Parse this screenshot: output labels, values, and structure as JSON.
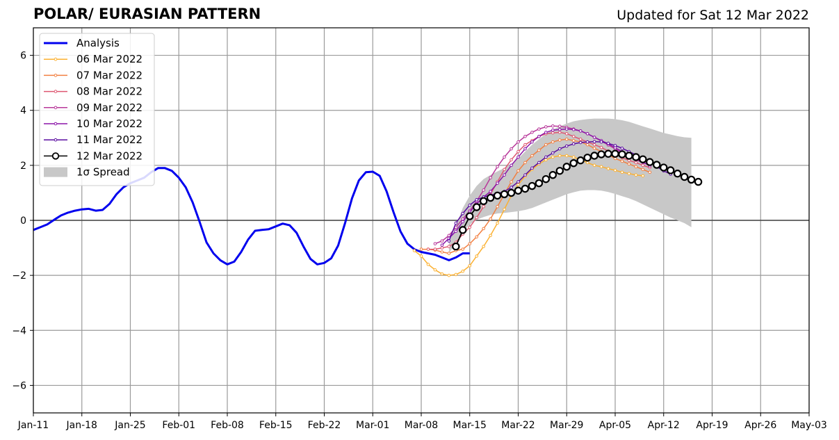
{
  "header": {
    "title": "POLAR/ EURASIAN  PATTERN",
    "updated": "Updated for Sat 12 Mar 2022"
  },
  "chart_data": {
    "type": "line",
    "title": "POLAR/ EURASIAN  PATTERN",
    "subtitle": "Updated for Sat 12 Mar 2022",
    "xlabel": "",
    "ylabel": "",
    "xlim": [
      "2022-01-11",
      "2022-05-03"
    ],
    "ylim": [
      -7,
      7
    ],
    "grid": true,
    "legend_position": "top-left",
    "x_tick_labels": [
      "Jan-11",
      "Jan-18",
      "Jan-25",
      "Feb-01",
      "Feb-08",
      "Feb-15",
      "Feb-22",
      "Mar-01",
      "Mar-08",
      "Mar-15",
      "Mar-22",
      "Mar-29",
      "Apr-05",
      "Apr-12",
      "Apr-19",
      "Apr-26",
      "May-03"
    ],
    "y_tick_labels": [
      "−6",
      "−4",
      "−2",
      "0",
      "2",
      "4",
      "6"
    ],
    "y_ticks": [
      -6,
      -4,
      -2,
      0,
      2,
      4,
      6
    ],
    "legend": [
      "Analysis",
      "06 Mar 2022",
      "07 Mar 2022",
      "08 Mar 2022",
      "09 Mar 2022",
      "10 Mar 2022",
      "11 Mar 2022",
      "12 Mar 2022",
      "1σ Spread"
    ],
    "analysis": {
      "name": "Analysis",
      "color": "#0000ee",
      "start": "2022-01-11",
      "values": [
        -0.35,
        -0.25,
        -0.15,
        0.02,
        0.18,
        0.28,
        0.35,
        0.4,
        0.42,
        0.35,
        0.38,
        0.6,
        0.95,
        1.2,
        1.35,
        1.45,
        1.55,
        1.75,
        1.9,
        1.9,
        1.8,
        1.55,
        1.2,
        0.65,
        -0.05,
        -0.8,
        -1.2,
        -1.45,
        -1.6,
        -1.5,
        -1.15,
        -0.7,
        -0.38,
        -0.35,
        -0.32,
        -0.22,
        -0.12,
        -0.18,
        -0.45,
        -0.95,
        -1.4,
        -1.6,
        -1.55,
        -1.38,
        -0.92,
        -0.1,
        0.8,
        1.45,
        1.75,
        1.77,
        1.62,
        1.05,
        0.3,
        -0.4,
        -0.85,
        -1.05,
        -1.15,
        -1.2,
        -1.25,
        -1.35,
        -1.45,
        -1.35,
        -1.2,
        -1.2
      ]
    },
    "forecasts": [
      {
        "name": "06 Mar 2022",
        "color": "#fbb030",
        "start": "2022-03-07",
        "values": [
          -1.1,
          -1.3,
          -1.6,
          -1.8,
          -1.95,
          -2.0,
          -1.97,
          -1.85,
          -1.65,
          -1.3,
          -0.95,
          -0.55,
          -0.1,
          0.4,
          0.9,
          1.3,
          1.6,
          1.85,
          2.05,
          2.2,
          2.3,
          2.35,
          2.35,
          2.3,
          2.2,
          2.1,
          2.0,
          1.95,
          1.88,
          1.82,
          1.75,
          1.7,
          1.65,
          1.62
        ]
      },
      {
        "name": "07 Mar 2022",
        "color": "#f27f40",
        "start": "2022-03-08",
        "values": [
          -1.05,
          -1.05,
          -1.08,
          -1.15,
          -1.2,
          -1.1,
          -1.05,
          -0.85,
          -0.6,
          -0.3,
          0.05,
          0.5,
          0.95,
          1.4,
          1.8,
          2.1,
          2.35,
          2.55,
          2.75,
          2.85,
          2.92,
          2.95,
          2.9,
          2.85,
          2.75,
          2.62,
          2.5,
          2.38,
          2.25,
          2.15,
          2.05,
          1.95,
          1.85,
          1.75
        ]
      },
      {
        "name": "08 Mar 2022",
        "color": "#de5670",
        "start": "2022-03-09",
        "values": [
          -1.05,
          -1.05,
          -1.0,
          -0.95,
          -0.8,
          -0.5,
          -0.25,
          0.1,
          0.5,
          0.95,
          1.4,
          1.85,
          2.2,
          2.5,
          2.75,
          2.9,
          3.05,
          3.15,
          3.18,
          3.2,
          3.15,
          3.05,
          2.95,
          2.85,
          2.75,
          2.65,
          2.52,
          2.4,
          2.28,
          2.18,
          2.1,
          2.0,
          1.92
        ]
      },
      {
        "name": "09 Mar 2022",
        "color": "#b8379a",
        "start": "2022-03-10",
        "values": [
          -0.85,
          -0.75,
          -0.55,
          -0.25,
          0.05,
          0.35,
          0.7,
          1.1,
          1.55,
          1.95,
          2.3,
          2.6,
          2.85,
          3.05,
          3.2,
          3.32,
          3.4,
          3.43,
          3.42,
          3.38,
          3.32,
          3.25,
          3.15,
          3.02,
          2.88,
          2.74,
          2.6,
          2.45,
          2.32,
          2.2,
          2.1,
          2.0
        ]
      },
      {
        "name": "10 Mar 2022",
        "color": "#8b14a8",
        "start": "2022-03-11",
        "values": [
          -0.9,
          -0.65,
          -0.4,
          -0.05,
          0.3,
          0.6,
          0.85,
          1.05,
          1.35,
          1.65,
          2.0,
          2.3,
          2.6,
          2.85,
          3.05,
          3.2,
          3.28,
          3.3,
          3.32,
          3.3,
          3.25,
          3.15,
          3.02,
          2.9,
          2.78,
          2.64,
          2.5,
          2.36,
          2.24,
          2.12,
          1.98
        ]
      },
      {
        "name": "11 Mar 2022",
        "color": "#5a0ba0",
        "start": "2022-03-12",
        "values": [
          -0.75,
          -0.1,
          0.25,
          0.55,
          0.75,
          0.85,
          0.92,
          0.97,
          1.05,
          1.2,
          1.4,
          1.65,
          1.9,
          2.1,
          2.3,
          2.45,
          2.6,
          2.7,
          2.78,
          2.83,
          2.85,
          2.86,
          2.85,
          2.8,
          2.72,
          2.62,
          2.5,
          2.38,
          2.24,
          2.1,
          1.95,
          1.8,
          1.68
        ]
      }
    ],
    "latest": {
      "name": "12 Mar 2022",
      "color": "#000000",
      "start": "2022-03-13",
      "values": [
        -0.95,
        -0.35,
        0.15,
        0.48,
        0.7,
        0.82,
        0.9,
        0.95,
        1.0,
        1.08,
        1.15,
        1.25,
        1.35,
        1.5,
        1.65,
        1.8,
        1.95,
        2.08,
        2.18,
        2.28,
        2.35,
        2.4,
        2.42,
        2.42,
        2.4,
        2.35,
        2.3,
        2.22,
        2.12,
        2.02,
        1.92,
        1.82,
        1.7,
        1.58,
        1.48,
        1.4
      ]
    },
    "spread": {
      "name": "1σ Spread",
      "color": "#c8c8c8",
      "start": "2022-03-12",
      "upper": [
        -0.8,
        -0.2,
        0.45,
        0.9,
        1.25,
        1.5,
        1.65,
        1.78,
        1.9,
        2.05,
        2.25,
        2.5,
        2.75,
        2.95,
        3.15,
        3.3,
        3.42,
        3.52,
        3.6,
        3.65,
        3.68,
        3.7,
        3.7,
        3.7,
        3.68,
        3.64,
        3.58,
        3.5,
        3.42,
        3.34,
        3.26,
        3.18,
        3.12,
        3.06,
        3.02,
        3.0
      ],
      "lower": [
        -1.2,
        -0.8,
        -0.4,
        -0.15,
        0.02,
        0.12,
        0.2,
        0.25,
        0.27,
        0.3,
        0.33,
        0.38,
        0.45,
        0.55,
        0.65,
        0.75,
        0.85,
        0.95,
        1.02,
        1.08,
        1.1,
        1.1,
        1.08,
        1.03,
        0.96,
        0.88,
        0.8,
        0.7,
        0.58,
        0.46,
        0.34,
        0.22,
        0.1,
        0.0,
        -0.1,
        -0.25
      ]
    }
  }
}
